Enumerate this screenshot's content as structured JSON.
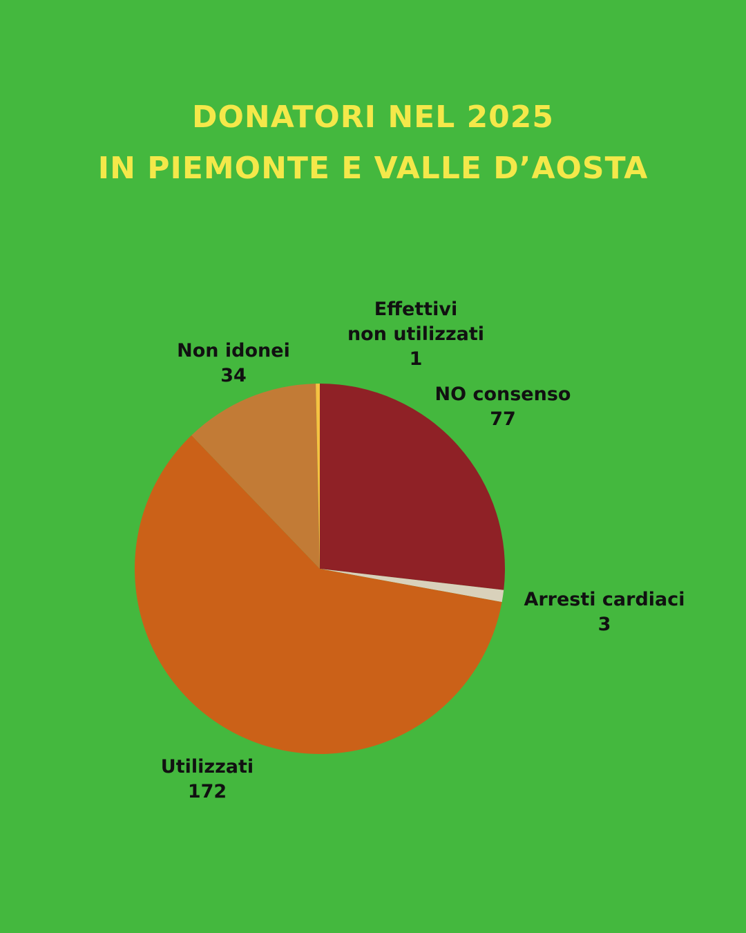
{
  "chart_data": {
    "type": "pie",
    "title": [
      "DONATORI NEL 2025",
      "IN PIEMONTE E VALLE D’AOSTA"
    ],
    "categories": [
      "NO consenso",
      "Arresti cardiaci",
      "Utilizzati",
      "Non idonei",
      "Effettivi\nnon utilizzati"
    ],
    "values": [
      77,
      3,
      172,
      34,
      1
    ],
    "colors": [
      "#8f2126",
      "#d9d1bb",
      "#cb6118",
      "#c27b36",
      "#f5c242"
    ]
  }
}
